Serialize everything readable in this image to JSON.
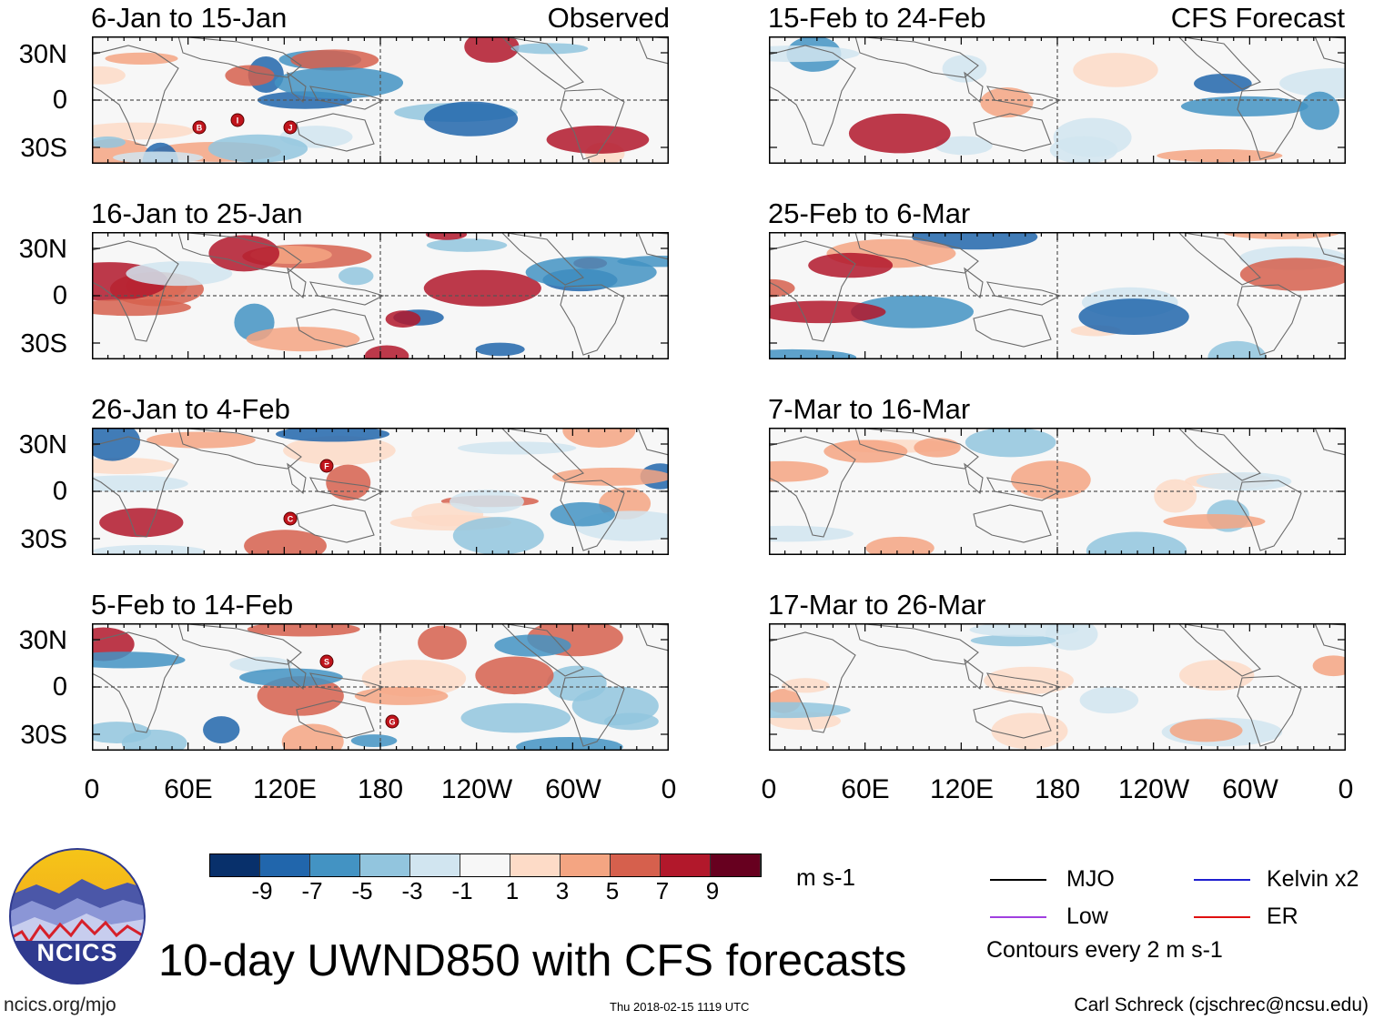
{
  "title": "10-day UWND850 with CFS forecasts",
  "source_labels": {
    "observed": "Observed",
    "forecast": "CFS Forecast"
  },
  "lat_labels": [
    "30N",
    "0",
    "30S"
  ],
  "lon_labels": [
    "0",
    "60E",
    "120E",
    "180",
    "120W",
    "60W",
    "0"
  ],
  "panels": [
    {
      "title": "6-Jan to 15-Jan",
      "type": "observed",
      "storms": [
        "B",
        "I",
        "J"
      ]
    },
    {
      "title": "16-Jan to 25-Jan",
      "type": "observed",
      "storms": []
    },
    {
      "title": "26-Jan to 4-Feb",
      "type": "observed",
      "storms": [
        "C",
        "F"
      ]
    },
    {
      "title": "5-Feb to 14-Feb",
      "type": "observed",
      "storms": [
        "S",
        "G"
      ]
    },
    {
      "title": "15-Feb to 24-Feb",
      "type": "forecast",
      "storms": []
    },
    {
      "title": "25-Feb to 6-Mar",
      "type": "forecast",
      "storms": []
    },
    {
      "title": "7-Mar to 16-Mar",
      "type": "forecast",
      "storms": []
    },
    {
      "title": "17-Mar to 26-Mar",
      "type": "forecast",
      "storms": []
    }
  ],
  "colorbar": {
    "ticks": [
      "-9",
      "-7",
      "-5",
      "-3",
      "-1",
      "1",
      "3",
      "5",
      "7",
      "9"
    ],
    "colors": [
      "#08306b",
      "#2166ac",
      "#4393c3",
      "#92c5de",
      "#d1e5f0",
      "#f7f7f7",
      "#fddbc7",
      "#f4a582",
      "#d6604d",
      "#b2182b",
      "#67001f"
    ],
    "unit": "m s-1"
  },
  "legend": {
    "items": [
      {
        "label": "MJO",
        "color": "#000000"
      },
      {
        "label": "Kelvin x2",
        "color": "#1f1fd0"
      },
      {
        "label": "Low",
        "color": "#a040e0"
      },
      {
        "label": "ER",
        "color": "#e01010"
      }
    ],
    "contour_note": "Contours every 2 m s-1"
  },
  "logo": {
    "text": "NCICS"
  },
  "footer": {
    "website": "ncics.org/mjo",
    "timestamp": "Thu 2018-02-15 1119 UTC",
    "author": "Carl Schreck (cjschrec@ncsu.edu)"
  }
}
